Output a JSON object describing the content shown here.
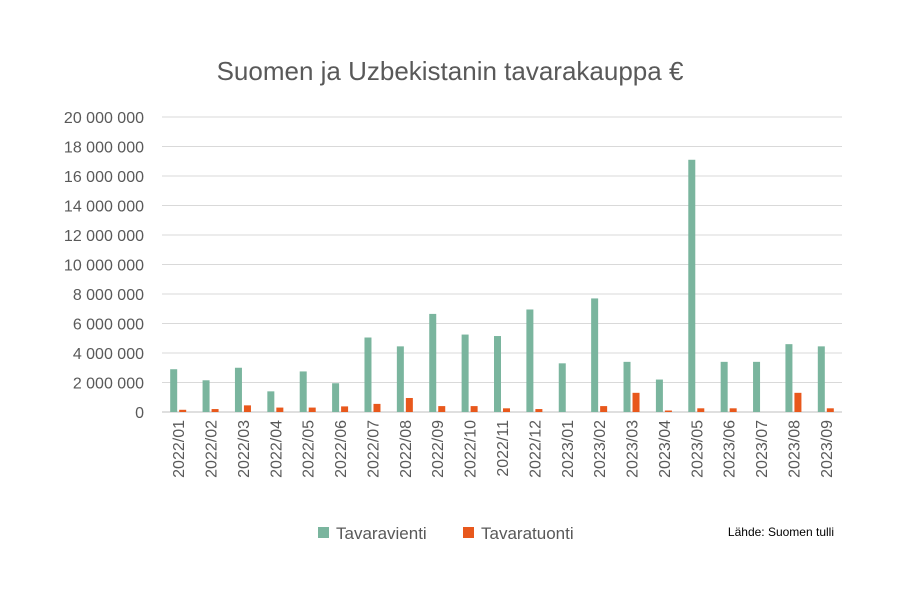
{
  "chart_data": {
    "type": "bar",
    "title": "Suomen ja Uzbekistanin tavarakauppa €",
    "xlabel": "",
    "ylabel": "",
    "ylim": [
      0,
      20000000
    ],
    "yticks": [
      0,
      2000000,
      4000000,
      6000000,
      8000000,
      10000000,
      12000000,
      14000000,
      16000000,
      18000000,
      20000000
    ],
    "ytick_labels": [
      "0",
      "2 000 000",
      "4 000 000",
      "6 000 000",
      "8 000 000",
      "10 000 000",
      "12 000 000",
      "14 000 000",
      "16 000 000",
      "18 000 000",
      "20 000 000"
    ],
    "grid": true,
    "legend_position": "bottom",
    "categories": [
      "2022/01",
      "2022/02",
      "2022/03",
      "2022/04",
      "2022/05",
      "2022/06",
      "2022/07",
      "2022/08",
      "2022/09",
      "2022/10",
      "2022/11",
      "2022/12",
      "2023/01",
      "2023/02",
      "2023/03",
      "2023/04",
      "2023/05",
      "2023/06",
      "2023/07",
      "2023/08",
      "2023/09"
    ],
    "series": [
      {
        "name": "Tavaravienti",
        "color": "#7ab59e",
        "values": [
          2900000,
          2150000,
          3000000,
          1400000,
          2750000,
          1950000,
          5050000,
          4450000,
          6650000,
          5250000,
          5150000,
          6950000,
          3300000,
          7700000,
          3400000,
          2200000,
          17100000,
          3400000,
          3400000,
          4600000,
          4450000
        ]
      },
      {
        "name": "Tavaratuonti",
        "color": "#e8581c",
        "values": [
          150000,
          200000,
          450000,
          300000,
          300000,
          380000,
          550000,
          950000,
          400000,
          400000,
          250000,
          200000,
          0,
          400000,
          1300000,
          100000,
          250000,
          250000,
          0,
          1300000,
          250000
        ]
      }
    ],
    "source_note": "Lähde: Suomen tulli"
  }
}
